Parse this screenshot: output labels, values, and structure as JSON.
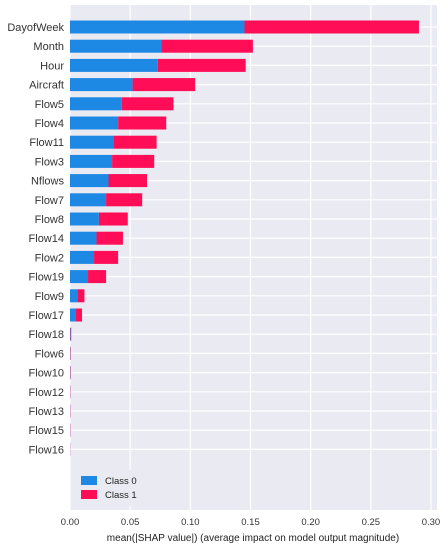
{
  "chart_data": {
    "type": "bar",
    "orientation": "horizontal",
    "stacked": true,
    "title": "",
    "xlabel": "mean(|SHAP value|) (average impact on model output magnitude)",
    "ylabel": "",
    "xlim": [
      0,
      0.305
    ],
    "x_ticks": [
      "0.00",
      "0.05",
      "0.10",
      "0.15",
      "0.20",
      "0.25",
      "0.30"
    ],
    "grid": true,
    "legend_position": "bottom-left",
    "categories": [
      "DayofWeek",
      "Month",
      "Hour",
      "Aircraft",
      "Flow5",
      "Flow4",
      "Flow11",
      "Flow3",
      "Nflows",
      "Flow7",
      "Flow8",
      "Flow14",
      "Flow2",
      "Flow19",
      "Flow9",
      "Flow17",
      "Flow18",
      "Flow6",
      "Flow10",
      "Flow12",
      "Flow13",
      "Flow15",
      "Flow16"
    ],
    "series": [
      {
        "name": "Class 0",
        "color": "#1e88e5",
        "values": [
          0.145,
          0.076,
          0.073,
          0.052,
          0.043,
          0.04,
          0.036,
          0.035,
          0.032,
          0.03,
          0.024,
          0.022,
          0.02,
          0.015,
          0.006,
          0.005,
          0.0005,
          0.0003,
          0.0003,
          0.0002,
          0.0002,
          0.0002,
          0.0001
        ]
      },
      {
        "name": "Class 1",
        "color": "#ff0d57",
        "values": [
          0.145,
          0.076,
          0.073,
          0.052,
          0.043,
          0.04,
          0.036,
          0.035,
          0.032,
          0.03,
          0.024,
          0.022,
          0.02,
          0.015,
          0.006,
          0.005,
          0.0005,
          0.0003,
          0.0003,
          0.0002,
          0.0002,
          0.0002,
          0.0001
        ]
      }
    ]
  }
}
